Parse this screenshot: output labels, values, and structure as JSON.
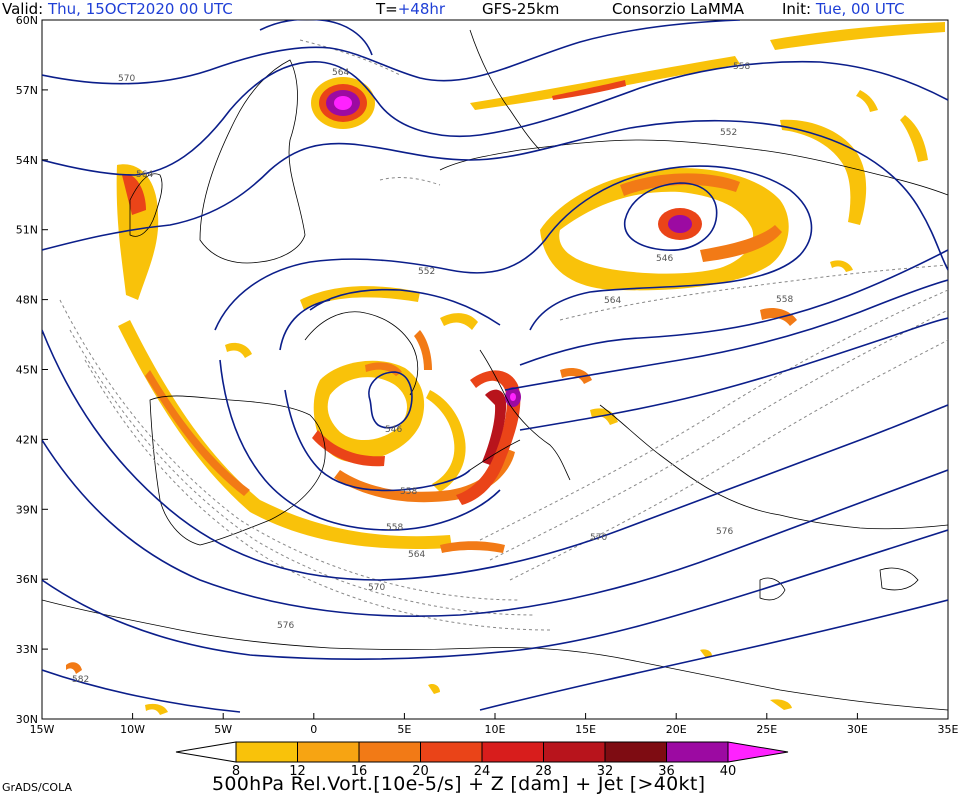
{
  "header": {
    "valid_label": "Valid:",
    "valid_value": "Thu, 15OCT2020 00 UTC",
    "t_label": "T=",
    "t_value": "+48hr",
    "model": "GFS-25km",
    "org": "Consorzio LaMMA",
    "init_label": "Init:",
    "init_value": "Tue, 00 UTC"
  },
  "map": {
    "lat_ticks": [
      "60N",
      "57N",
      "54N",
      "51N",
      "48N",
      "45N",
      "42N",
      "39N",
      "36N",
      "33N",
      "30N"
    ],
    "lon_ticks": [
      "15W",
      "10W",
      "5W",
      "0",
      "5E",
      "10E",
      "15E",
      "20E",
      "25E",
      "30E",
      "35E"
    ],
    "contour_labels": [
      "570",
      "564",
      "558",
      "552",
      "546",
      "546",
      "552",
      "558",
      "564",
      "570",
      "576",
      "582",
      "558",
      "564",
      "570",
      "576",
      "558",
      "564"
    ]
  },
  "colorbar": {
    "labels": [
      "8",
      "12",
      "16",
      "20",
      "24",
      "28",
      "32",
      "36",
      "40"
    ],
    "colors": [
      "#ffffff",
      "#f9c20a",
      "#f7a412",
      "#f27a16",
      "#ea4418",
      "#d81d1c",
      "#b8141c",
      "#7e0c12",
      "#9c0aa2",
      "#ff22ff"
    ]
  },
  "footer": {
    "title": "500hPa Rel.Vort.[10e-5/s] + Z [dam] + Jet [>40kt]",
    "credit": "GrADS/COLA"
  }
}
